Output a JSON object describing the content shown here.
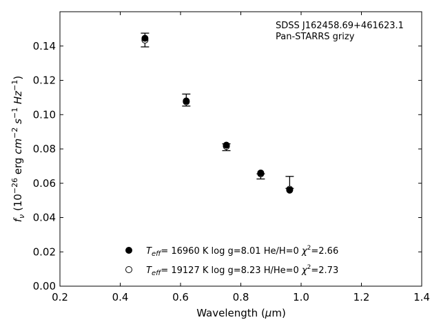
{
  "chart_data": {
    "type": "scatter",
    "xlabel": "Wavelength (μm)",
    "ylabel": "f_ν (10^-26 erg cm^-2 s^-1 Hz^-1)",
    "xlim": [
      0.2,
      1.4
    ],
    "ylim": [
      0.0,
      0.16
    ],
    "x_ticks": [
      "0.2",
      "0.4",
      "0.6",
      "0.8",
      "1.0",
      "1.2",
      "1.4"
    ],
    "y_ticks": [
      "0.00",
      "0.02",
      "0.04",
      "0.06",
      "0.08",
      "0.10",
      "0.12",
      "0.14"
    ],
    "annotation": [
      "SDSS J162458.69+461623.1",
      "Pan-STARRS grizy"
    ],
    "grid": false,
    "legend_position": "bottom-center",
    "observed": {
      "x": [
        0.482,
        0.619,
        0.752,
        0.866,
        0.962
      ],
      "y": [
        0.1435,
        0.1085,
        0.0815,
        0.065,
        0.0605
      ],
      "yerr_low": [
        0.004,
        0.0035,
        0.0025,
        0.0025,
        0.0035
      ],
      "yerr_high": [
        0.004,
        0.0035,
        0.0015,
        0.0005,
        0.0035
      ]
    },
    "series": [
      {
        "name": "T_eff= 16960 K  log g=8.01  He/H=0  χ²=2.66",
        "marker": "filled-circle",
        "x": [
          0.482,
          0.619,
          0.752,
          0.866,
          0.962
        ],
        "y": [
          0.1445,
          0.108,
          0.0822,
          0.066,
          0.056
        ]
      },
      {
        "name": "T_eff= 19127 K  log g=8.23  H/He=0  χ²=2.73",
        "marker": "open-circle",
        "x": [
          0.482,
          0.619,
          0.752,
          0.866,
          0.962
        ],
        "y": [
          0.1435,
          0.1075,
          0.0815,
          0.0655,
          0.0565
        ]
      }
    ]
  },
  "legend": {
    "entry1": {
      "teff": "16960 K",
      "logg": "log g=8.01",
      "comp": "He/H=0",
      "chi": "=2.66"
    },
    "entry2": {
      "teff": "19127 K",
      "logg": "log g=8.23",
      "comp": "H/He=0",
      "chi": "=2.73"
    }
  },
  "colors": {
    "marker": "#000000",
    "background": "#ffffff"
  }
}
